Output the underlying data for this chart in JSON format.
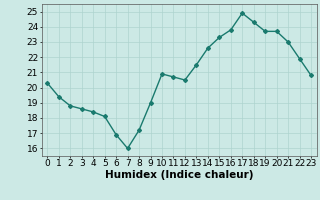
{
  "x": [
    0,
    1,
    2,
    3,
    4,
    5,
    6,
    7,
    8,
    9,
    10,
    11,
    12,
    13,
    14,
    15,
    16,
    17,
    18,
    19,
    20,
    21,
    22,
    23
  ],
  "y": [
    20.3,
    19.4,
    18.8,
    18.6,
    18.4,
    18.1,
    16.9,
    16.0,
    17.2,
    19.0,
    20.9,
    20.7,
    20.5,
    21.5,
    22.6,
    23.3,
    23.8,
    24.9,
    24.3,
    23.7,
    23.7,
    23.0,
    21.9,
    20.8
  ],
  "xlabel": "Humidex (Indice chaleur)",
  "ylim": [
    15.5,
    25.5
  ],
  "xlim": [
    -0.5,
    23.5
  ],
  "yticks": [
    16,
    17,
    18,
    19,
    20,
    21,
    22,
    23,
    24,
    25
  ],
  "xticks": [
    0,
    1,
    2,
    3,
    4,
    5,
    6,
    7,
    8,
    9,
    10,
    11,
    12,
    13,
    14,
    15,
    16,
    17,
    18,
    19,
    20,
    21,
    22,
    23
  ],
  "line_color": "#1a7a6e",
  "bg_color": "#cce9e5",
  "grid_color": "#aed4cf",
  "tick_label_fontsize": 6.5,
  "xlabel_fontsize": 7.5,
  "marker": "D",
  "marker_size": 2.0,
  "line_width": 1.0
}
